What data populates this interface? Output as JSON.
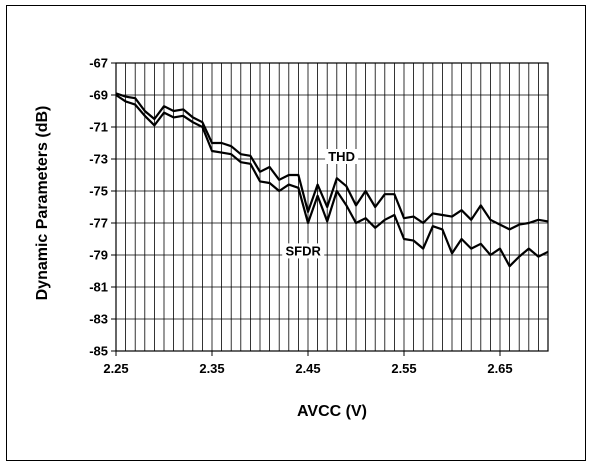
{
  "chart_data": {
    "type": "line",
    "xlabel": "AVCC (V)",
    "ylabel": "Dynamic Parameters (dB)",
    "xlim": [
      2.25,
      2.7
    ],
    "ylim": [
      -85,
      -67
    ],
    "x_ticks": [
      "2.25",
      "2.35",
      "2.45",
      "2.55",
      "2.65"
    ],
    "y_ticks": [
      "-67",
      "-69",
      "-71",
      "-73",
      "-75",
      "-77",
      "-79",
      "-81",
      "-83",
      "-85"
    ],
    "grid": true,
    "series_labels": [
      "THD",
      "SFDR"
    ],
    "series": [
      {
        "name": "THD",
        "x": [
          2.25,
          2.26,
          2.27,
          2.28,
          2.29,
          2.3,
          2.31,
          2.32,
          2.33,
          2.34,
          2.35,
          2.36,
          2.37,
          2.38,
          2.39,
          2.4,
          2.41,
          2.42,
          2.43,
          2.44,
          2.45,
          2.46,
          2.47,
          2.48,
          2.49,
          2.5,
          2.51,
          2.52,
          2.53,
          2.54,
          2.55,
          2.56,
          2.57,
          2.58,
          2.59,
          2.6,
          2.61,
          2.62,
          2.63,
          2.64,
          2.65,
          2.66,
          2.67,
          2.68,
          2.69,
          2.7
        ],
        "values": [
          -68.9,
          -69.1,
          -69.2,
          -70.0,
          -70.5,
          -69.7,
          -70.0,
          -69.9,
          -70.4,
          -70.7,
          -72.0,
          -72.0,
          -72.2,
          -72.7,
          -72.8,
          -73.8,
          -73.5,
          -74.3,
          -74.0,
          -74.0,
          -76.3,
          -74.6,
          -76.0,
          -74.2,
          -74.7,
          -75.9,
          -75.0,
          -76.0,
          -75.2,
          -75.2,
          -76.7,
          -76.6,
          -77.0,
          -76.4,
          -76.5,
          -76.6,
          -76.2,
          -76.8,
          -75.9,
          -76.8,
          -77.1,
          -77.4,
          -77.1,
          -77.0,
          -76.8,
          -76.9
        ]
      },
      {
        "name": "SFDR",
        "x": [
          2.25,
          2.26,
          2.27,
          2.28,
          2.29,
          2.3,
          2.31,
          2.32,
          2.33,
          2.34,
          2.35,
          2.36,
          2.37,
          2.38,
          2.39,
          2.4,
          2.41,
          2.42,
          2.43,
          2.44,
          2.45,
          2.46,
          2.47,
          2.48,
          2.49,
          2.5,
          2.51,
          2.52,
          2.53,
          2.54,
          2.55,
          2.56,
          2.57,
          2.58,
          2.59,
          2.6,
          2.61,
          2.62,
          2.63,
          2.64,
          2.65,
          2.66,
          2.67,
          2.68,
          2.69,
          2.7
        ],
        "values": [
          -69.0,
          -69.4,
          -69.6,
          -70.3,
          -70.9,
          -70.1,
          -70.4,
          -70.3,
          -70.7,
          -71.0,
          -72.5,
          -72.6,
          -72.7,
          -73.2,
          -73.3,
          -74.4,
          -74.5,
          -75.0,
          -74.6,
          -74.8,
          -77.0,
          -75.3,
          -76.9,
          -75.0,
          -75.9,
          -77.0,
          -76.7,
          -77.3,
          -76.8,
          -76.5,
          -78.0,
          -78.1,
          -78.6,
          -77.2,
          -77.4,
          -78.9,
          -78.0,
          -78.6,
          -78.3,
          -79.0,
          -78.6,
          -79.7,
          -79.1,
          -78.6,
          -79.1,
          -78.8
        ]
      }
    ]
  }
}
